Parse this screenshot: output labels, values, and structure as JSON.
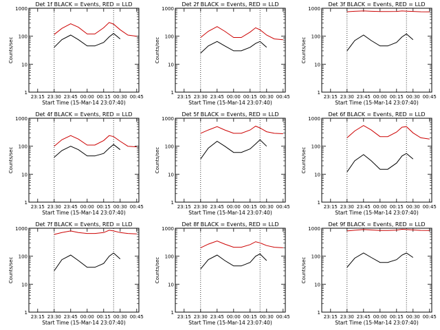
{
  "chart_data": [
    {
      "type": "line",
      "title": "Det 1f BLACK = Events, RED = LLD",
      "ylabel": "Counts/sec",
      "xlabel": "Start Time (15-Mar-14 23:07:40)",
      "xticks": [
        "23:15",
        "23:30",
        "23:45",
        "00:00",
        "00:15",
        "00:30",
        "00:45"
      ],
      "yticks": [
        "1",
        "10",
        "100",
        "1000"
      ],
      "ylog": true,
      "ylim": [
        1,
        1000
      ],
      "markers": {
        "S": "23:30",
        "E": "00:24"
      },
      "series": [
        {
          "name": "Events",
          "color": "#000000",
          "x": [
            "23:07",
            "23:13",
            "23:20",
            "23:30",
            "23:37",
            "23:45",
            "23:52",
            "00:00",
            "00:07",
            "00:15",
            "00:20",
            "00:24",
            "00:30"
          ],
          "values": [
            null,
            null,
            null,
            40,
            75,
            110,
            75,
            45,
            45,
            60,
            95,
            125,
            80
          ]
        },
        {
          "name": "LLD",
          "color": "#cc0000",
          "x": [
            "23:07",
            "23:13",
            "23:20",
            "23:30",
            "23:37",
            "23:45",
            "23:52",
            "00:00",
            "00:07",
            "00:15",
            "00:20",
            "00:24",
            "00:30",
            "00:37",
            "00:45"
          ],
          "values": [
            null,
            null,
            null,
            115,
            190,
            280,
            210,
            120,
            120,
            200,
            310,
            270,
            170,
            110,
            100
          ]
        }
      ]
    },
    {
      "type": "line",
      "title": "Det 2f BLACK = Events, RED = LLD",
      "ylabel": "Counts/sec",
      "xlabel": "Start Time (15-Mar-14 23:07:40)",
      "xticks": [
        "23:15",
        "23:30",
        "23:45",
        "00:00",
        "00:15",
        "00:30",
        "00:45"
      ],
      "yticks": [
        "1",
        "10",
        "100",
        "1000"
      ],
      "ylog": true,
      "ylim": [
        1,
        1000
      ],
      "markers": {
        "S": "23:30",
        "E": "00:24"
      },
      "series": [
        {
          "name": "Events",
          "color": "#000000",
          "x": [
            "23:07",
            "23:13",
            "23:20",
            "23:30",
            "23:37",
            "23:45",
            "23:52",
            "00:00",
            "00:07",
            "00:15",
            "00:20",
            "00:24",
            "00:30"
          ],
          "values": [
            null,
            null,
            null,
            25,
            45,
            65,
            45,
            30,
            30,
            40,
            55,
            65,
            40
          ]
        },
        {
          "name": "LLD",
          "color": "#cc0000",
          "x": [
            "23:07",
            "23:13",
            "23:20",
            "23:30",
            "23:37",
            "23:45",
            "23:52",
            "00:00",
            "00:07",
            "00:15",
            "00:20",
            "00:24",
            "00:30",
            "00:37",
            "00:45"
          ],
          "values": [
            null,
            null,
            null,
            90,
            150,
            220,
            150,
            90,
            90,
            140,
            200,
            170,
            110,
            80,
            75
          ]
        }
      ]
    },
    {
      "type": "line",
      "title": "Det 3f BLACK = Events, RED = LLD",
      "ylabel": "Counts/sec",
      "xlabel": "Start Time (15-Mar-14 23:07:40)",
      "xticks": [
        "23:15",
        "23:30",
        "23:45",
        "00:00",
        "00:15",
        "00:30",
        "00:45"
      ],
      "yticks": [
        "1",
        "10",
        "100",
        "1000"
      ],
      "ylog": true,
      "ylim": [
        1,
        1000
      ],
      "markers": {
        "S": "23:30",
        "E": "00:24"
      },
      "series": [
        {
          "name": "Events",
          "color": "#000000",
          "x": [
            "23:07",
            "23:13",
            "23:20",
            "23:30",
            "23:37",
            "23:45",
            "23:52",
            "00:00",
            "00:07",
            "00:15",
            "00:20",
            "00:24",
            "00:30"
          ],
          "values": [
            null,
            null,
            null,
            30,
            70,
            110,
            70,
            45,
            45,
            60,
            95,
            120,
            75
          ]
        },
        {
          "name": "LLD",
          "color": "#cc0000",
          "x": [
            "23:07",
            "23:13",
            "23:20",
            "23:30",
            "23:37",
            "23:45",
            "23:52",
            "00:00",
            "00:07",
            "00:15",
            "00:20",
            "00:24",
            "00:30",
            "00:37",
            "00:45"
          ],
          "values": [
            null,
            null,
            null,
            750,
            780,
            800,
            780,
            760,
            760,
            770,
            800,
            790,
            770,
            750,
            740
          ]
        }
      ]
    },
    {
      "type": "line",
      "title": "Det 4f BLACK = Events, RED = LLD",
      "ylabel": "Counts/sec",
      "xlabel": "Start Time (15-Mar-14 23:07:40)",
      "xticks": [
        "23:15",
        "23:30",
        "23:45",
        "00:00",
        "00:15",
        "00:30",
        "00:45"
      ],
      "yticks": [
        "1",
        "10",
        "100",
        "1000"
      ],
      "ylog": true,
      "ylim": [
        1,
        1000
      ],
      "markers": {
        "S": "23:30",
        "E": "00:24"
      },
      "series": [
        {
          "name": "Events",
          "color": "#000000",
          "x": [
            "23:07",
            "23:13",
            "23:20",
            "23:30",
            "23:37",
            "23:45",
            "23:52",
            "00:00",
            "00:07",
            "00:15",
            "00:20",
            "00:24",
            "00:30"
          ],
          "values": [
            null,
            null,
            null,
            40,
            70,
            100,
            75,
            45,
            45,
            55,
            85,
            115,
            75
          ]
        },
        {
          "name": "LLD",
          "color": "#cc0000",
          "x": [
            "23:07",
            "23:13",
            "23:20",
            "23:30",
            "23:37",
            "23:45",
            "23:52",
            "00:00",
            "00:07",
            "00:15",
            "00:20",
            "00:24",
            "00:30",
            "00:37",
            "00:45"
          ],
          "values": [
            null,
            null,
            null,
            100,
            170,
            240,
            180,
            110,
            110,
            160,
            240,
            220,
            150,
            100,
            95
          ]
        }
      ]
    },
    {
      "type": "line",
      "title": "Det 5f BLACK = Events, RED = LLD",
      "ylabel": "Counts/sec",
      "xlabel": "Start Time (15-Mar-14 23:07:40)",
      "xticks": [
        "23:15",
        "23:30",
        "23:45",
        "00:00",
        "00:15",
        "00:30",
        "00:45"
      ],
      "yticks": [
        "1",
        "10",
        "100",
        "1000"
      ],
      "ylog": true,
      "ylim": [
        1,
        1000
      ],
      "markers": {
        "S": "23:30",
        "E": "00:24"
      },
      "series": [
        {
          "name": "Events",
          "color": "#000000",
          "x": [
            "23:07",
            "23:13",
            "23:20",
            "23:30",
            "23:37",
            "23:45",
            "23:52",
            "00:00",
            "00:07",
            "00:15",
            "00:20",
            "00:24",
            "00:30"
          ],
          "values": [
            null,
            null,
            null,
            35,
            85,
            150,
            100,
            60,
            60,
            80,
            120,
            170,
            100
          ]
        },
        {
          "name": "LLD",
          "color": "#cc0000",
          "x": [
            "23:07",
            "23:13",
            "23:20",
            "23:30",
            "23:37",
            "23:45",
            "23:52",
            "00:00",
            "00:07",
            "00:15",
            "00:20",
            "00:24",
            "00:30",
            "00:37",
            "00:45"
          ],
          "values": [
            null,
            null,
            null,
            290,
            380,
            500,
            380,
            290,
            290,
            380,
            520,
            450,
            330,
            290,
            280
          ]
        }
      ]
    },
    {
      "type": "line",
      "title": "Det 6f BLACK = Events, RED = LLD",
      "ylabel": "Counts/sec",
      "xlabel": "Start Time (15-Mar-14 23:07:40)",
      "xticks": [
        "23:15",
        "23:30",
        "23:45",
        "00:00",
        "00:15",
        "00:30",
        "00:45"
      ],
      "yticks": [
        "1",
        "10",
        "100",
        "1000"
      ],
      "ylog": true,
      "ylim": [
        1,
        1000
      ],
      "markers": {
        "S": "23:30",
        "E": "00:24"
      },
      "series": [
        {
          "name": "Events",
          "color": "#000000",
          "x": [
            "23:07",
            "23:13",
            "23:20",
            "23:30",
            "23:37",
            "23:45",
            "23:52",
            "00:00",
            "00:07",
            "00:15",
            "00:20",
            "00:24",
            "00:30"
          ],
          "values": [
            null,
            null,
            null,
            12,
            30,
            50,
            30,
            15,
            15,
            25,
            45,
            55,
            35
          ]
        },
        {
          "name": "LLD",
          "color": "#cc0000",
          "x": [
            "23:07",
            "23:13",
            "23:20",
            "23:30",
            "23:37",
            "23:45",
            "23:52",
            "00:00",
            "00:07",
            "00:15",
            "00:20",
            "00:24",
            "00:30",
            "00:37",
            "00:45"
          ],
          "values": [
            null,
            null,
            null,
            200,
            350,
            550,
            380,
            220,
            220,
            320,
            480,
            500,
            300,
            200,
            180
          ]
        }
      ]
    },
    {
      "type": "line",
      "title": "Det 7f BLACK = Events, RED = LLD",
      "ylabel": "Counts/sec",
      "xlabel": "Start Time (15-Mar-14 23:07:40)",
      "xticks": [
        "23:15",
        "23:30",
        "23:45",
        "00:00",
        "00:15",
        "00:30",
        "00:45"
      ],
      "yticks": [
        "1",
        "10",
        "100",
        "1000"
      ],
      "ylog": true,
      "ylim": [
        1,
        1000
      ],
      "markers": {
        "S": "23:30",
        "E": "00:24"
      },
      "series": [
        {
          "name": "Events",
          "color": "#000000",
          "x": [
            "23:07",
            "23:13",
            "23:20",
            "23:30",
            "23:37",
            "23:45",
            "23:52",
            "00:00",
            "00:07",
            "00:15",
            "00:20",
            "00:24",
            "00:30"
          ],
          "values": [
            null,
            null,
            null,
            30,
            75,
            110,
            70,
            40,
            40,
            55,
            100,
            130,
            80
          ]
        },
        {
          "name": "LLD",
          "color": "#cc0000",
          "x": [
            "23:07",
            "23:13",
            "23:20",
            "23:30",
            "23:37",
            "23:45",
            "23:52",
            "00:00",
            "00:07",
            "00:15",
            "00:20",
            "00:24",
            "00:30",
            "00:37",
            "00:45"
          ],
          "values": [
            null,
            null,
            null,
            600,
            700,
            800,
            700,
            650,
            650,
            700,
            850,
            800,
            700,
            650,
            630
          ]
        }
      ]
    },
    {
      "type": "line",
      "title": "Det 8f BLACK = Events, RED = LLD",
      "ylabel": "Counts/sec",
      "xlabel": "Start Time (15-Mar-14 23:07:40)",
      "xticks": [
        "23:15",
        "23:30",
        "23:45",
        "00:00",
        "00:15",
        "00:30",
        "00:45"
      ],
      "yticks": [
        "1",
        "10",
        "100",
        "1000"
      ],
      "ylog": true,
      "ylim": [
        1,
        1000
      ],
      "markers": {
        "S": "23:30",
        "E": "00:24"
      },
      "series": [
        {
          "name": "Events",
          "color": "#000000",
          "x": [
            "23:07",
            "23:13",
            "23:20",
            "23:30",
            "23:37",
            "23:45",
            "23:52",
            "00:00",
            "00:07",
            "00:15",
            "00:20",
            "00:24",
            "00:30"
          ],
          "values": [
            null,
            null,
            null,
            35,
            75,
            110,
            70,
            45,
            45,
            60,
            100,
            120,
            70
          ]
        },
        {
          "name": "LLD",
          "color": "#cc0000",
          "x": [
            "23:07",
            "23:13",
            "23:20",
            "23:30",
            "23:37",
            "23:45",
            "23:52",
            "00:00",
            "00:07",
            "00:15",
            "00:20",
            "00:24",
            "00:30",
            "00:37",
            "00:45"
          ],
          "values": [
            null,
            null,
            null,
            200,
            270,
            350,
            270,
            210,
            210,
            260,
            330,
            300,
            240,
            210,
            200
          ]
        }
      ]
    },
    {
      "type": "line",
      "title": "Det 9f BLACK = Events, RED = LLD",
      "ylabel": "Counts/sec",
      "xlabel": "Start Time (15-Mar-14 23:07:40)",
      "xticks": [
        "23:15",
        "23:30",
        "23:45",
        "00:00",
        "00:15",
        "00:30",
        "00:45"
      ],
      "yticks": [
        "1",
        "10",
        "100",
        "1000"
      ],
      "ylog": true,
      "ylim": [
        1,
        1000
      ],
      "markers": {
        "S": "23:30",
        "E": "00:24"
      },
      "series": [
        {
          "name": "Events",
          "color": "#000000",
          "x": [
            "23:07",
            "23:13",
            "23:20",
            "23:30",
            "23:37",
            "23:45",
            "23:52",
            "00:00",
            "00:07",
            "00:15",
            "00:20",
            "00:24",
            "00:30"
          ],
          "values": [
            null,
            null,
            null,
            40,
            85,
            130,
            90,
            60,
            60,
            75,
            110,
            130,
            90
          ]
        },
        {
          "name": "LLD",
          "color": "#cc0000",
          "x": [
            "23:07",
            "23:13",
            "23:20",
            "23:30",
            "23:37",
            "23:45",
            "23:52",
            "00:00",
            "00:07",
            "00:15",
            "00:20",
            "00:24",
            "00:30",
            "00:37",
            "00:45"
          ],
          "values": [
            null,
            null,
            null,
            800,
            850,
            900,
            870,
            830,
            830,
            860,
            920,
            900,
            870,
            840,
            830
          ]
        }
      ]
    }
  ]
}
